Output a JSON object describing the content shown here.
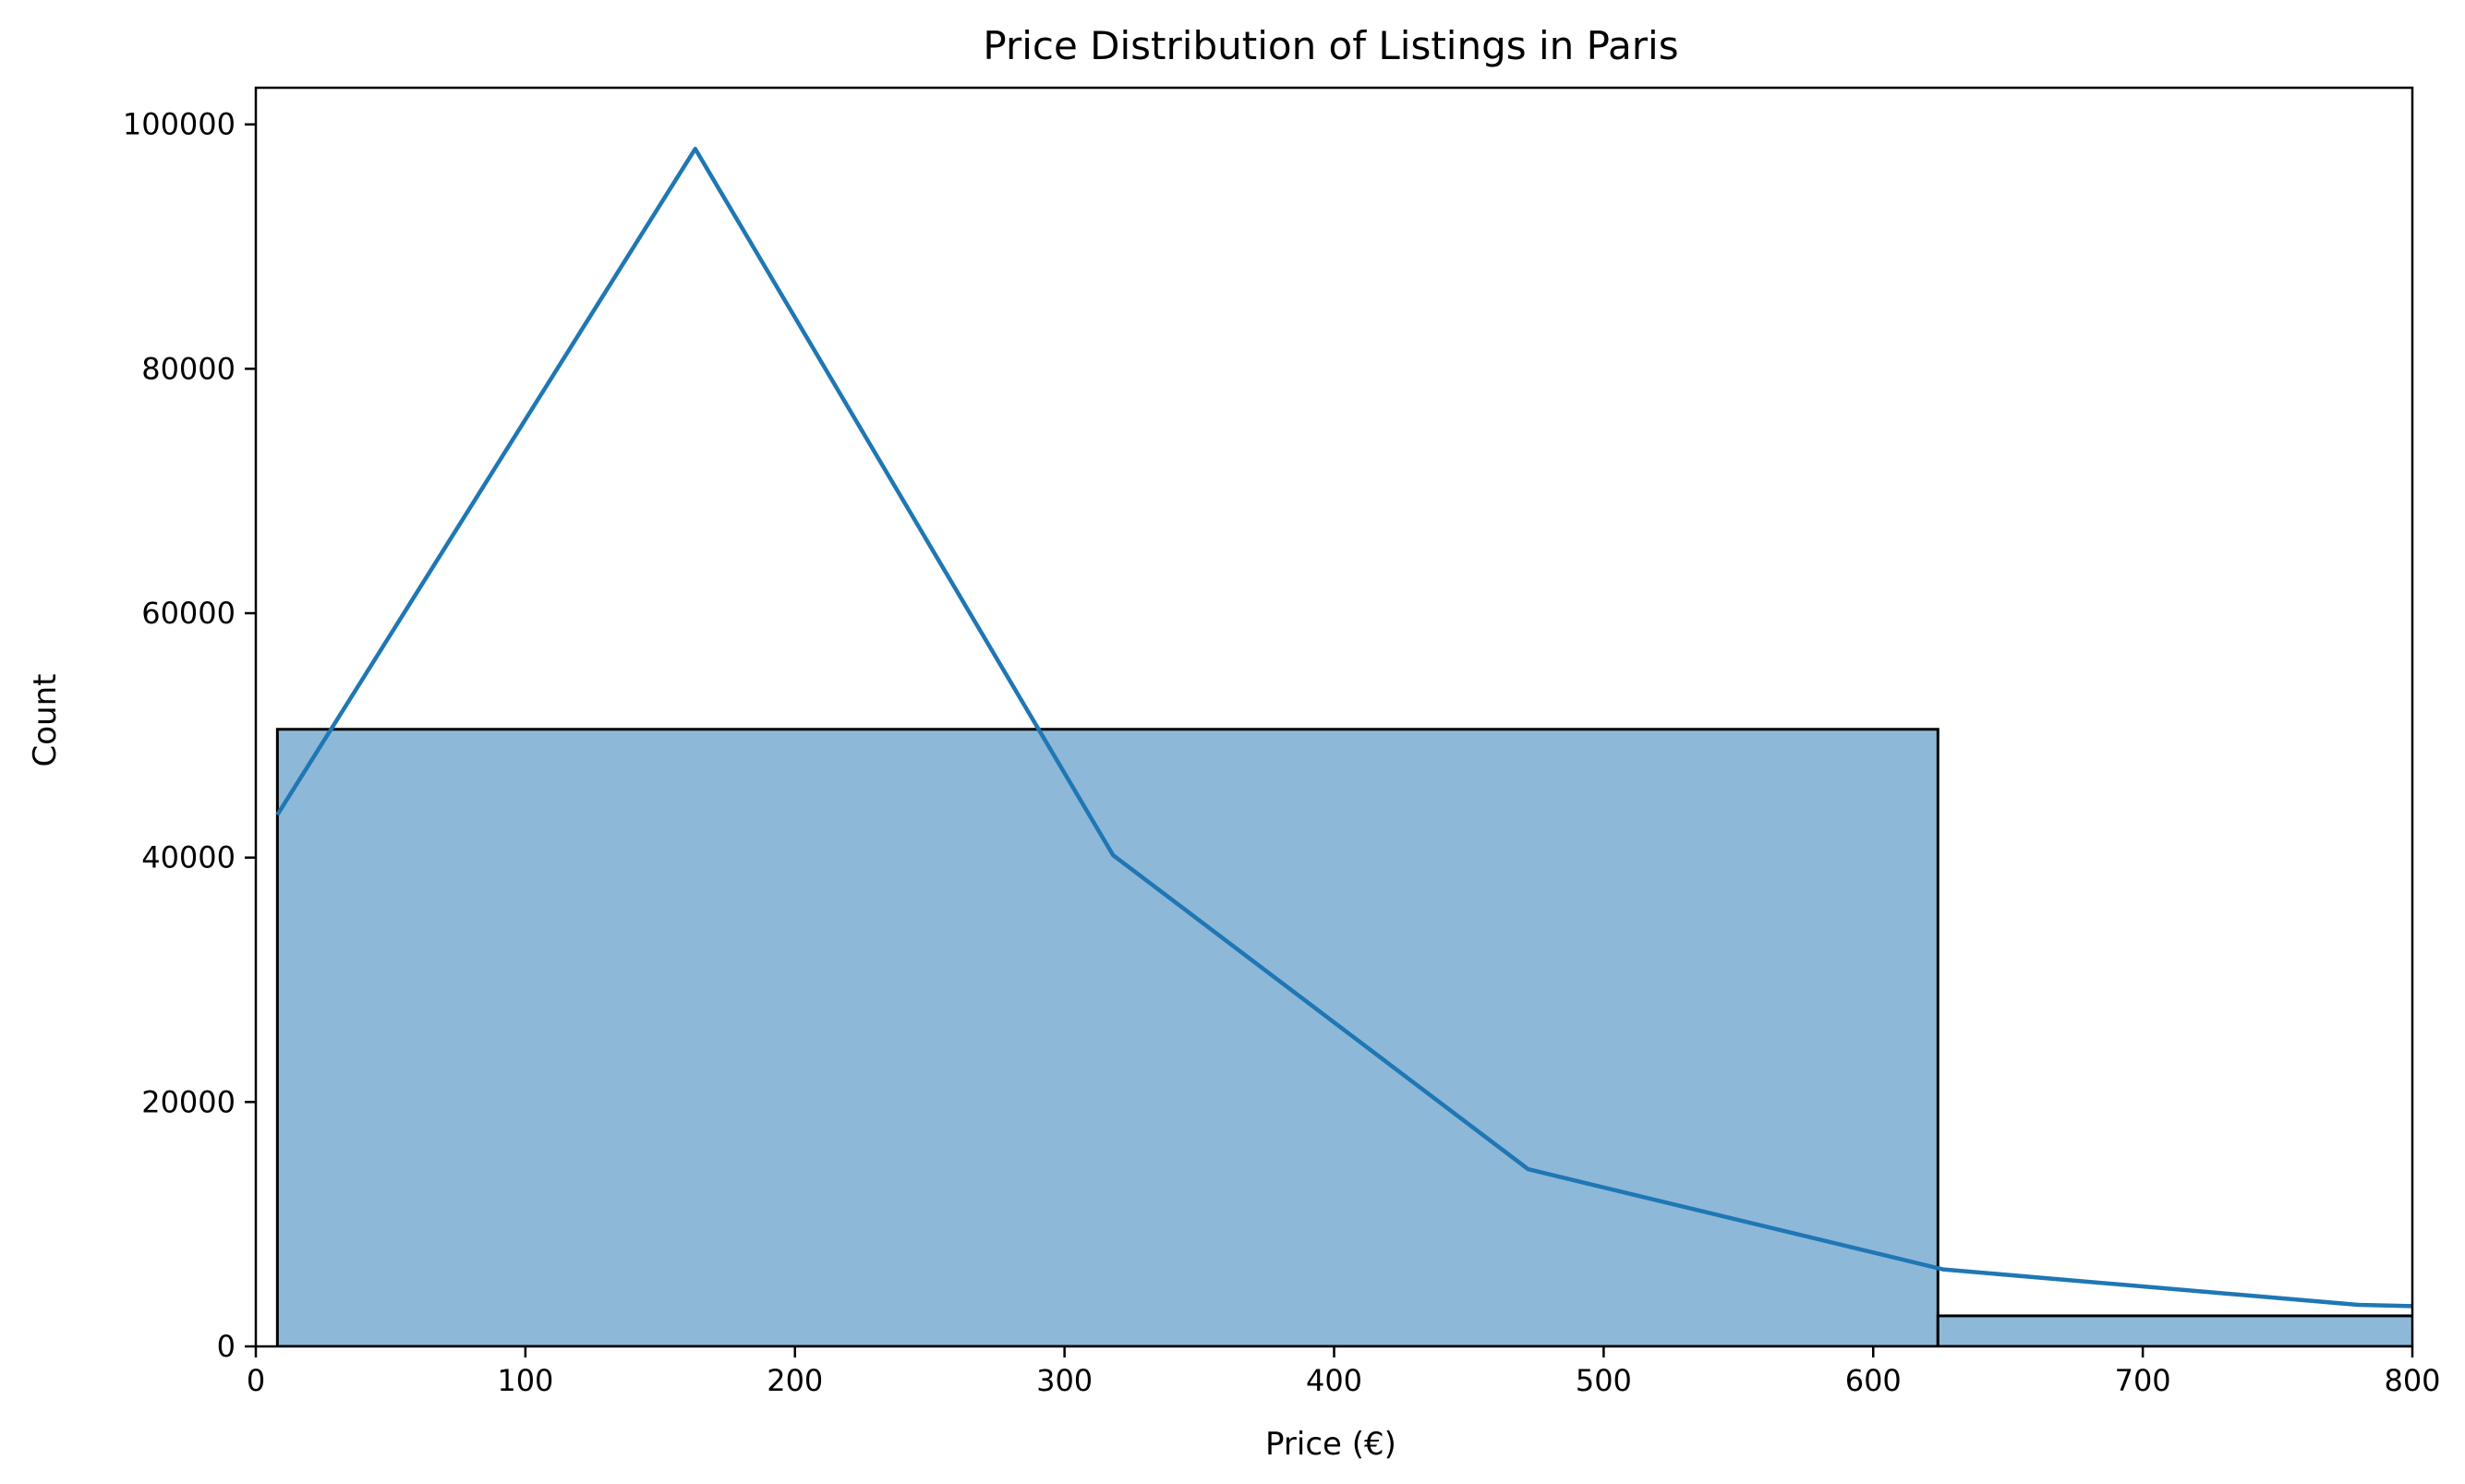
{
  "chart_data": {
    "type": "bar",
    "title": "Price Distribution of Listings in Paris",
    "xlabel": "Price (€)",
    "ylabel": "Count",
    "xlim": [
      0,
      800
    ],
    "ylim": [
      0,
      103000
    ],
    "xticks": [
      0,
      100,
      200,
      300,
      400,
      500,
      600,
      700,
      800
    ],
    "yticks": [
      0,
      20000,
      40000,
      60000,
      80000,
      100000
    ],
    "grid": false,
    "histogram_bins": [
      {
        "x0": 8,
        "x1": 624,
        "count": 50500
      },
      {
        "x0": 624,
        "x1": 1240,
        "count": 2500
      }
    ],
    "kde_line": {
      "x": [
        8,
        163,
        318,
        472,
        626,
        780,
        800
      ],
      "y": [
        43500,
        98000,
        40200,
        14500,
        6300,
        3400,
        3300
      ]
    },
    "colors": {
      "bar_fill": "#8eb8d8",
      "bar_edge": "#000000",
      "line": "#1f77b4"
    }
  }
}
